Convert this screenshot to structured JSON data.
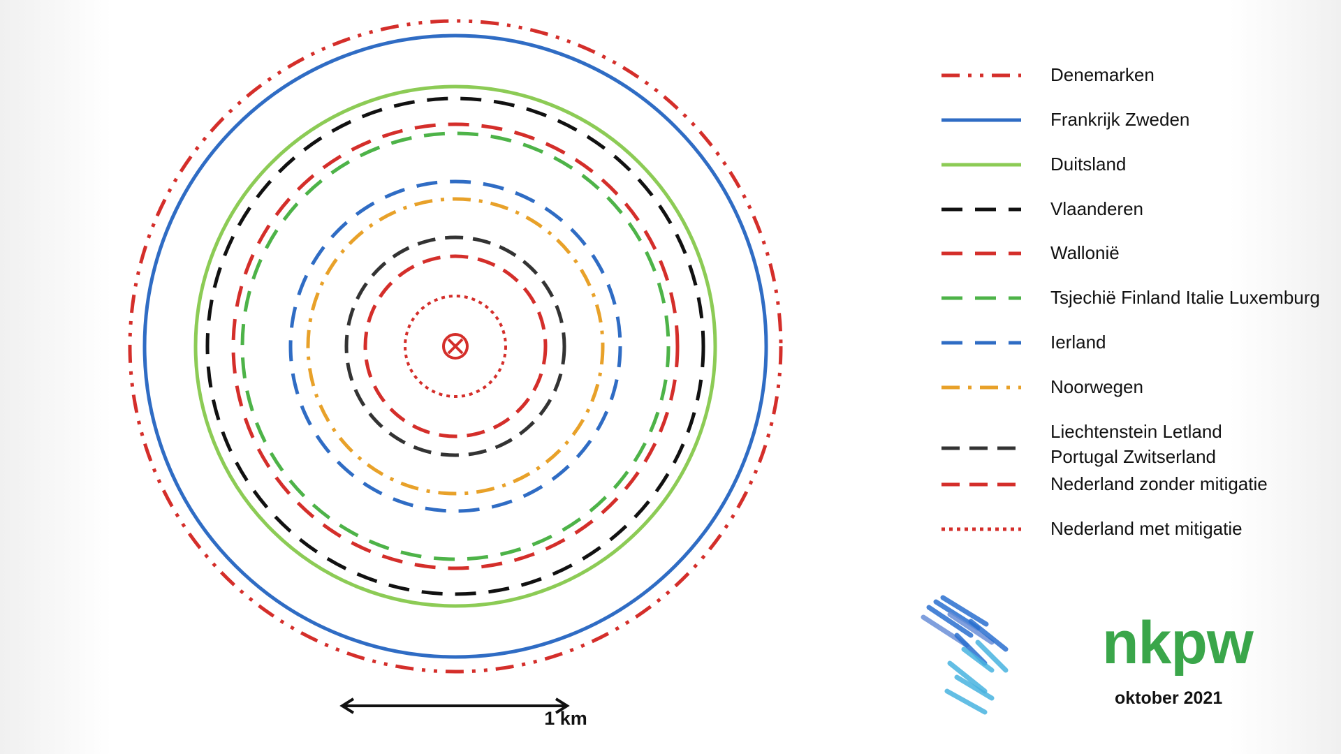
{
  "legend": {
    "items": [
      {
        "label": "Denemarken",
        "color": "#d42e2a",
        "style": "dash-dot-dot"
      },
      {
        "label": "Frankrijk Zweden",
        "color": "#2f6cc4",
        "style": "solid"
      },
      {
        "label": "Duitsland",
        "color": "#8ccb55",
        "style": "solid"
      },
      {
        "label": "Vlaanderen",
        "color": "#111111",
        "style": "long-dash"
      },
      {
        "label": "Wallonië",
        "color": "#d42e2a",
        "style": "long-dash"
      },
      {
        "label": "Tsjechië Finland Italie Luxemburg",
        "color": "#4db348",
        "style": "long-dash"
      },
      {
        "label": "Ierland",
        "color": "#2f6cc4",
        "style": "long-dash"
      },
      {
        "label": "Noorwegen",
        "color": "#e8a129",
        "style": "dash-dot"
      },
      {
        "label": "Liechtenstein Letland\nPortugal Zwitserland",
        "color": "#333333",
        "style": "dash"
      },
      {
        "label": "Nederland zonder mitigatie",
        "color": "#d42e2a",
        "style": "dash"
      },
      {
        "label": "Nederland met mitigatie",
        "color": "#d42e2a",
        "style": "dot"
      }
    ]
  },
  "center_marker": {
    "icon": "circled-x-icon",
    "color": "#d42e2a"
  },
  "scale_bar": {
    "label": "1 km"
  },
  "logo": {
    "text": "nkpw",
    "date": "oktober 2021",
    "text_color": "#3aa64a",
    "mark_colors": [
      "#2a6fd0",
      "#48b3e0",
      "#6a8fd8"
    ]
  }
}
